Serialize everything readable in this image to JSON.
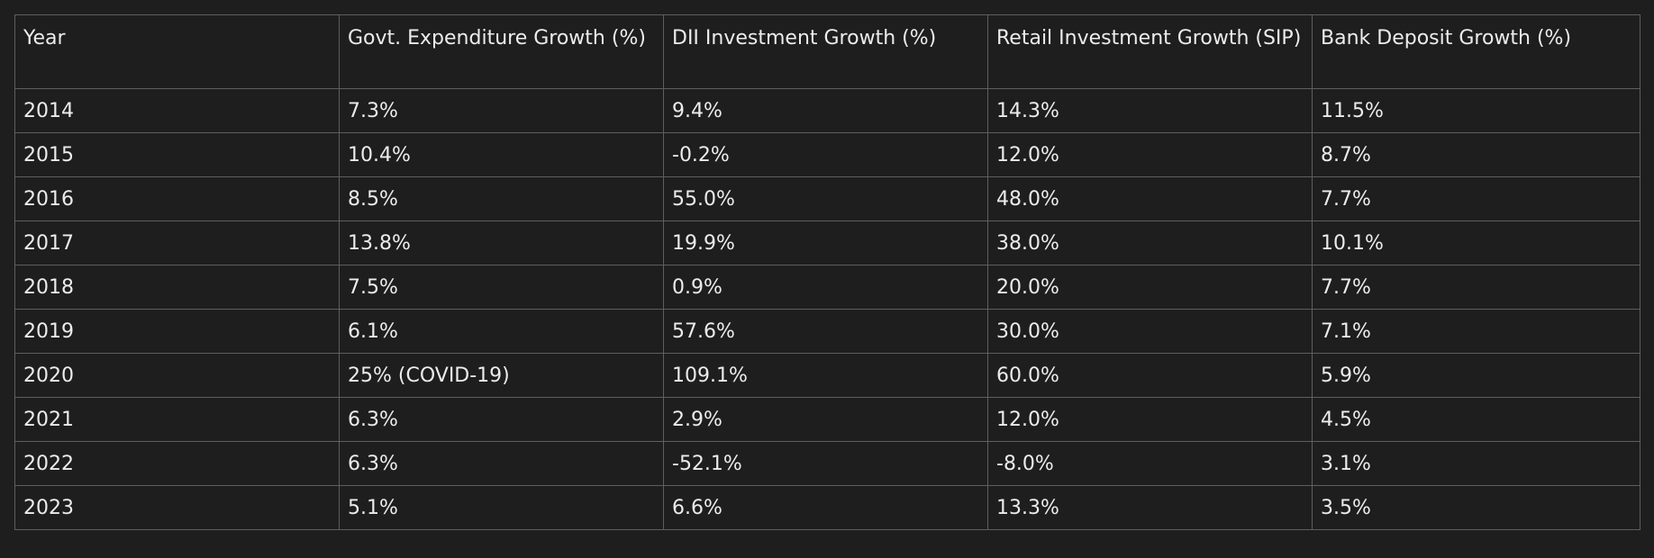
{
  "table": {
    "headers": [
      "Year",
      "Govt. Expenditure Growth (%)",
      "DII Investment Growth (%)",
      "Retail Investment Growth (SIP)",
      "Bank Deposit Growth (%)"
    ],
    "rows": [
      [
        "2014",
        "7.3%",
        "9.4%",
        "14.3%",
        "11.5%"
      ],
      [
        "2015",
        "10.4%",
        "-0.2%",
        "12.0%",
        "8.7%"
      ],
      [
        "2016",
        "8.5%",
        "55.0%",
        "48.0%",
        "7.7%"
      ],
      [
        "2017",
        "13.8%",
        "19.9%",
        "38.0%",
        "10.1%"
      ],
      [
        "2018",
        "7.5%",
        "0.9%",
        "20.0%",
        "7.7%"
      ],
      [
        "2019",
        "6.1%",
        "57.6%",
        "30.0%",
        "7.1%"
      ],
      [
        "2020",
        "25% (COVID-19)",
        "109.1%",
        "60.0%",
        "5.9%"
      ],
      [
        "2021",
        "6.3%",
        "2.9%",
        "12.0%",
        "4.5%"
      ],
      [
        "2022",
        "6.3%",
        "-52.1%",
        "-8.0%",
        "3.1%"
      ],
      [
        "2023",
        "5.1%",
        "6.6%",
        "13.3%",
        "3.5%"
      ]
    ]
  }
}
